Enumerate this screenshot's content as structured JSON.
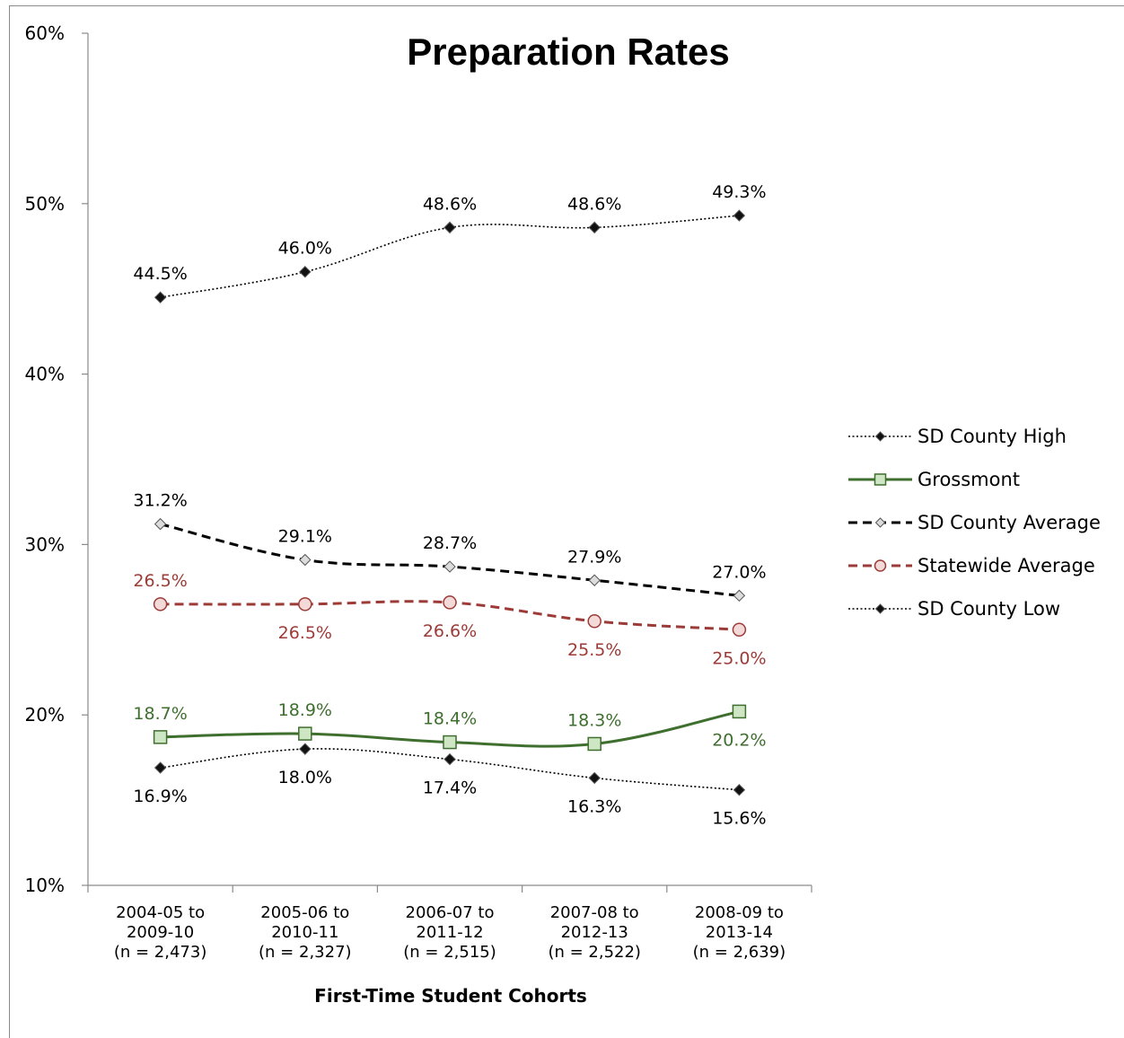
{
  "chart_data": {
    "type": "line",
    "title": "Preparation Rates",
    "xlabel": "First-Time Student Cohorts",
    "ylabel": "",
    "ylim": [
      10,
      60
    ],
    "yticks": [
      "10%",
      "20%",
      "30%",
      "40%",
      "50%",
      "60%"
    ],
    "ytick_values": [
      10,
      20,
      30,
      40,
      50,
      60
    ],
    "categories": [
      [
        "2004-05 to",
        "2009-10",
        "(n = 2,473)"
      ],
      [
        "2005-06 to",
        "2010-11",
        "(n = 2,327)"
      ],
      [
        "2006-07 to",
        "2011-12",
        "(n = 2,515)"
      ],
      [
        "2007-08 to",
        "2012-13",
        "(n = 2,522)"
      ],
      [
        "2008-09 to",
        "2013-14",
        "(n = 2,639)"
      ]
    ],
    "grid": false,
    "legend_position": "right",
    "series": [
      {
        "name": "SD County High",
        "values": [
          44.5,
          46.0,
          48.6,
          48.6,
          49.3
        ],
        "labels": [
          "44.5%",
          "46.0%",
          "48.6%",
          "48.6%",
          "49.3%"
        ],
        "label_position": "above",
        "color": "#000000",
        "label_color": "#000000",
        "line_style": "dotted",
        "marker": "diamond",
        "marker_fill": "#111111",
        "smooth": true
      },
      {
        "name": "Grossmont",
        "values": [
          18.7,
          18.9,
          18.4,
          18.3,
          20.2
        ],
        "labels": [
          "18.7%",
          "18.9%",
          "18.4%",
          "18.3%",
          "20.2%"
        ],
        "label_position": [
          "above",
          "above",
          "above",
          "above",
          "below"
        ],
        "color": "#3f6f2e",
        "label_color": "#3f6f2e",
        "line_style": "solid",
        "marker": "square",
        "marker_fill": "#cfe6c4",
        "smooth": true
      },
      {
        "name": "SD County Average",
        "values": [
          31.2,
          29.1,
          28.7,
          27.9,
          27.0
        ],
        "labels": [
          "31.2%",
          "29.1%",
          "28.7%",
          "27.9%",
          "27.0%"
        ],
        "label_position": "above",
        "color": "#000000",
        "label_color": "#000000",
        "line_style": "dashed",
        "marker": "diamond",
        "marker_fill": "#dcdcdc",
        "smooth": true
      },
      {
        "name": "Statewide Average",
        "values": [
          26.5,
          26.5,
          26.6,
          25.5,
          25.0
        ],
        "labels": [
          "26.5%",
          "26.5%",
          "26.6%",
          "25.5%",
          "25.0%"
        ],
        "label_position": [
          "above",
          "below",
          "below",
          "below",
          "below"
        ],
        "color": "#9c3b37",
        "label_color": "#9c3b37",
        "line_style": "dashed",
        "marker": "circle",
        "marker_fill": "#f3d9d8",
        "smooth": true
      },
      {
        "name": "SD County Low",
        "values": [
          16.9,
          18.0,
          17.4,
          16.3,
          15.6
        ],
        "labels": [
          "16.9%",
          "18.0%",
          "17.4%",
          "16.3%",
          "15.6%"
        ],
        "label_position": "below",
        "color": "#000000",
        "label_color": "#000000",
        "line_style": "dotted",
        "marker": "diamond",
        "marker_fill": "#111111",
        "smooth": true
      }
    ]
  }
}
